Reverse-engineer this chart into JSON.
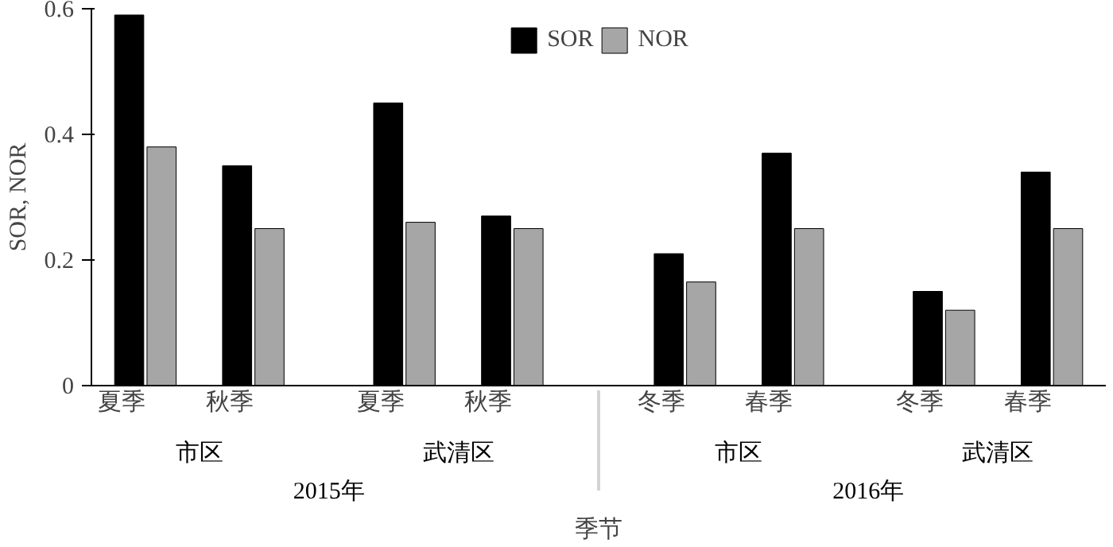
{
  "chart_data": {
    "type": "bar",
    "xlabel": "季节",
    "ylabel": "SOR, NOR",
    "categories": [
      "夏季",
      "秋季",
      "夏季",
      "秋季",
      "冬季",
      "春季",
      "冬季",
      "春季"
    ],
    "annotations": [
      "市区",
      "武清区",
      "市区",
      "武清区",
      "2015年",
      "2016年"
    ],
    "series": [
      {
        "name": "SOR",
        "color": "#000000",
        "values": [
          0.59,
          0.35,
          0.45,
          0.27,
          0.21,
          0.37,
          0.15,
          0.34
        ]
      },
      {
        "name": "NOR",
        "color": "#a6a6a6",
        "values": [
          0.38,
          0.25,
          0.26,
          0.25,
          0.165,
          0.25,
          0.12,
          0.25
        ]
      }
    ],
    "ylim": [
      0,
      0.6
    ],
    "yticks": [
      0,
      0.2,
      0.4,
      0.6
    ],
    "grid": false,
    "legend": "top"
  }
}
